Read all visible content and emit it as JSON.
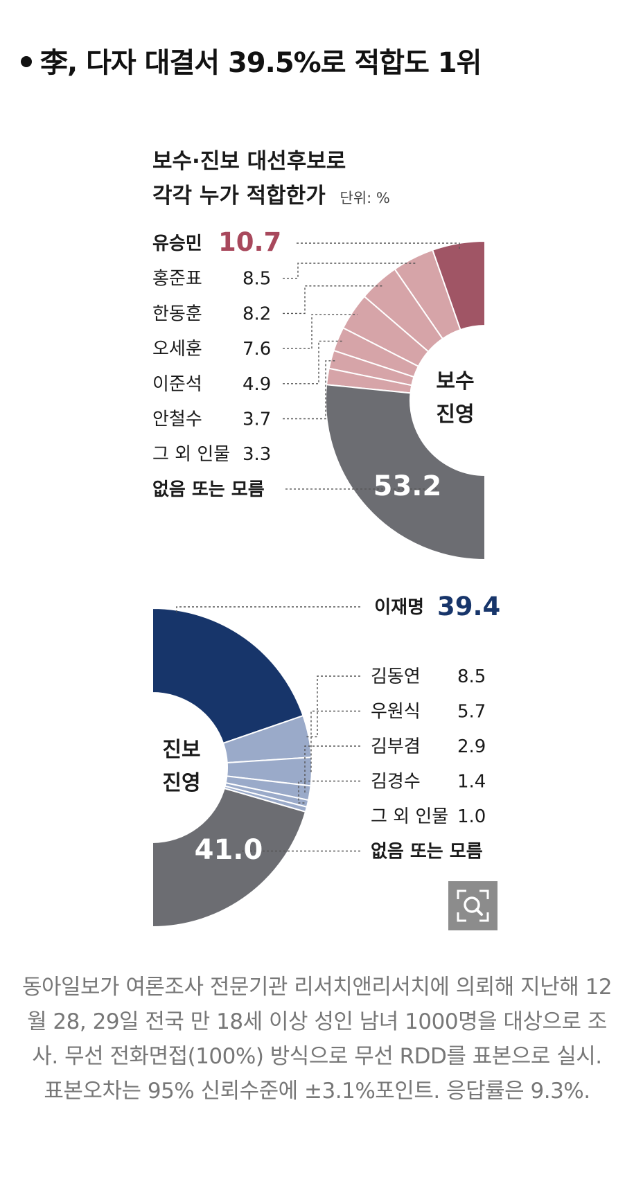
{
  "headline": "李, 다자 대결서 39.5%로 적합도 1위",
  "caption": "동아일보가 여론조사 전문기관 리서치앤리서치에 의뢰해 지난해 12월 28, 29일 전국 만 18세 이상 성인 남녀 1000명을 대상으로 조사. 무선 전화면접(100%) 방식으로 무선 RDD를 표본으로 실시. 표본오차는 95% 신뢰수준에 ±3.1%포인트. 응답률은 9.3%.",
  "zoom_icon": "magnifier-icon",
  "colors": {
    "conservative_top": "#a05565",
    "conservative_other": "#d6a4a8",
    "progressive_top": "#17356a",
    "progressive_other": "#9aaac9",
    "none": "#6c6d72",
    "accent_red": "#a8485c",
    "accent_blue": "#17356a"
  },
  "chart_data": [
    {
      "type": "pie",
      "title_line1": "보수·진보 대선후보로",
      "title_line2": "각각 누가 적합한가",
      "unit": "단위: %",
      "center_label": [
        "보수",
        "진영"
      ],
      "categories": [
        "유승민",
        "홍준표",
        "한동훈",
        "오세훈",
        "이준석",
        "안철수",
        "그 외 인물",
        "없음 또는 모름"
      ],
      "values": [
        10.7,
        8.5,
        8.2,
        7.6,
        4.9,
        3.7,
        3.3,
        53.2
      ],
      "value_labels": [
        "10.7",
        "8.5",
        "8.2",
        "7.6",
        "4.9",
        "3.7",
        "3.3",
        "53.2"
      ]
    },
    {
      "type": "pie",
      "center_label": [
        "진보",
        "진영"
      ],
      "categories": [
        "이재명",
        "김동연",
        "우원식",
        "김부겸",
        "김경수",
        "그 외 인물",
        "없음 또는 모름"
      ],
      "values": [
        39.4,
        8.5,
        5.7,
        2.9,
        1.4,
        1.0,
        41.0
      ],
      "value_labels": [
        "39.4",
        "8.5",
        "5.7",
        "2.9",
        "1.4",
        "1.0",
        "41.0"
      ]
    }
  ]
}
